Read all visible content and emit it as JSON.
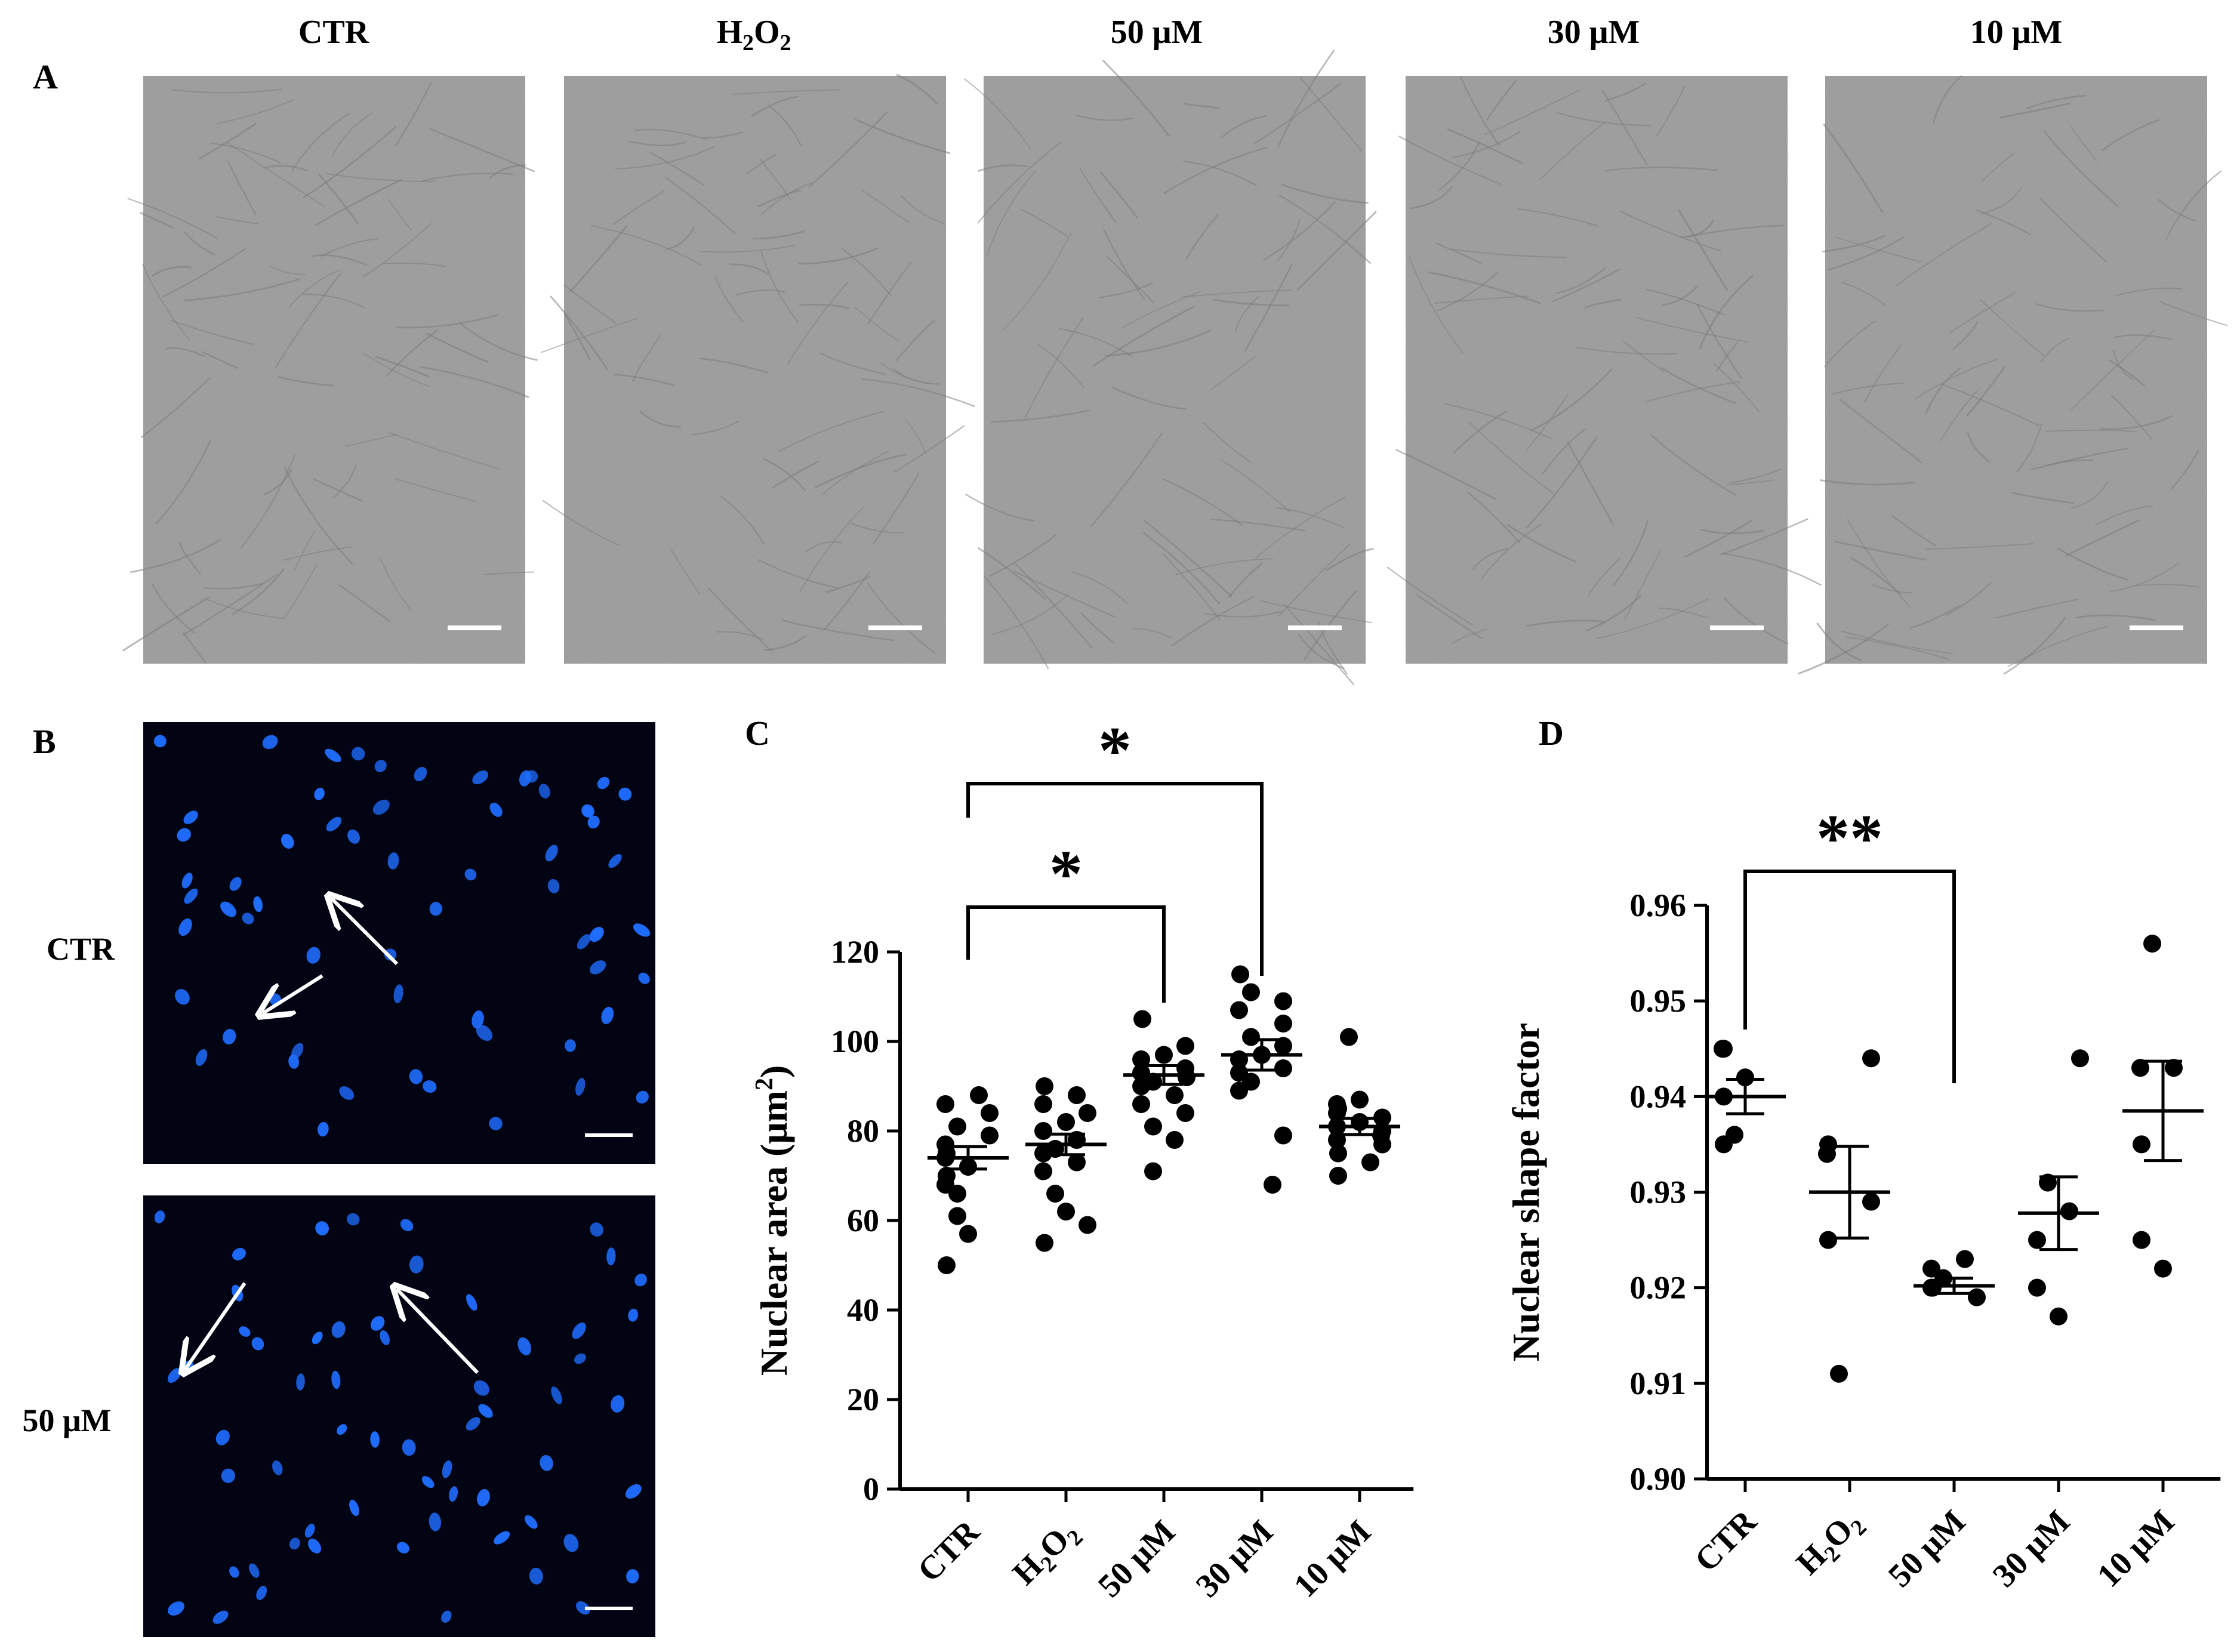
{
  "panel_labels": {
    "a": "A",
    "b": "B",
    "c": "C",
    "d": "D"
  },
  "panel_a": {
    "columns": [
      {
        "label": "CTR"
      },
      {
        "label": "H",
        "sub": "2",
        "label2": "O",
        "sub2": "2"
      },
      {
        "label": "50 μM"
      },
      {
        "label": "30 μM"
      },
      {
        "label": "10 μM"
      }
    ],
    "colors": {
      "micrograph_bg": "#9c9c9c",
      "cell_line": "#7d7d7d",
      "scale_bar": "#ffffff"
    }
  },
  "panel_b": {
    "rows": [
      {
        "label": "CTR"
      },
      {
        "label": "50 μM"
      }
    ],
    "colors": {
      "background": "#020414",
      "nucleus": "#1f6dff",
      "arrow": "#ffffff"
    }
  },
  "chart_data": [
    {
      "type": "scatter",
      "panel": "C",
      "categories": [
        "CTR",
        "H2O2",
        "50 μM",
        "30 μM",
        "10 μM"
      ],
      "category_labels": [
        {
          "text": "CTR"
        },
        {
          "text": "H",
          "sub": "2",
          "text2": "O",
          "sub2": "2"
        },
        {
          "text": "50 μM"
        },
        {
          "text": "30 μM"
        },
        {
          "text": "10 μM"
        }
      ],
      "ylabel": "Nuclear area (μm",
      "ylabel_sup": "2",
      "ylabel_end": ")",
      "ylim": [
        0,
        120
      ],
      "yticks": [
        0,
        20,
        40,
        60,
        80,
        100,
        120
      ],
      "ytick_labels": [
        "0",
        "20",
        "40",
        "60",
        "80",
        "100",
        "120"
      ],
      "grid": false,
      "points": [
        [
          88,
          86,
          84,
          81,
          79,
          77,
          75,
          74,
          72,
          70,
          68,
          66,
          61,
          57,
          50
        ],
        [
          90,
          88,
          86,
          84,
          82,
          80,
          78,
          76,
          75,
          73,
          71,
          66,
          62,
          59,
          55
        ],
        [
          105,
          99,
          97,
          96,
          94,
          93,
          92,
          91,
          90,
          88,
          86,
          84,
          81,
          78,
          71
        ],
        [
          115,
          111,
          109,
          107,
          104,
          101,
          99,
          97,
          96,
          94,
          93,
          91,
          89,
          79,
          68
        ],
        [
          101,
          87,
          86,
          85,
          84,
          83,
          82,
          81,
          80,
          79,
          78,
          77,
          75,
          73,
          70
        ]
      ],
      "means": [
        74,
        77,
        92.5,
        97,
        81
      ],
      "sem": [
        2.5,
        2.3,
        2.1,
        3.4,
        1.8
      ],
      "significance": [
        {
          "from": 0,
          "to": 2,
          "label": "*"
        },
        {
          "from": 0,
          "to": 3,
          "label": "*"
        }
      ]
    },
    {
      "type": "scatter",
      "panel": "D",
      "categories": [
        "CTR",
        "H2O2",
        "50 μM",
        "30 μM",
        "10 μM"
      ],
      "category_labels": [
        {
          "text": "CTR"
        },
        {
          "text": "H",
          "sub": "2",
          "text2": "O",
          "sub2": "2"
        },
        {
          "text": "50 μM"
        },
        {
          "text": "30 μM"
        },
        {
          "text": "10 μM"
        }
      ],
      "ylabel": "Nuclear shape factor",
      "ylim": [
        0.9,
        0.96
      ],
      "yticks": [
        0.9,
        0.91,
        0.92,
        0.93,
        0.94,
        0.95,
        0.96
      ],
      "ytick_labels": [
        "0.90",
        "0.91",
        "0.92",
        "0.93",
        "0.94",
        "0.95",
        "0.96"
      ],
      "grid": false,
      "points": [
        [
          0.945,
          0.945,
          0.942,
          0.94,
          0.936,
          0.935
        ],
        [
          0.944,
          0.935,
          0.934,
          0.929,
          0.925,
          0.911
        ],
        [
          0.923,
          0.922,
          0.921,
          0.92,
          0.92,
          0.919
        ],
        [
          0.944,
          0.931,
          0.928,
          0.925,
          0.92,
          0.917
        ],
        [
          0.956,
          0.943,
          0.943,
          0.935,
          0.925,
          0.922
        ]
      ],
      "means": [
        0.94,
        0.93,
        0.9202,
        0.9278,
        0.9385
      ],
      "sem": [
        0.0018,
        0.0048,
        0.0008,
        0.0038,
        0.0052
      ],
      "significance": [
        {
          "from": 0,
          "to": 2,
          "label": "**"
        }
      ]
    }
  ]
}
